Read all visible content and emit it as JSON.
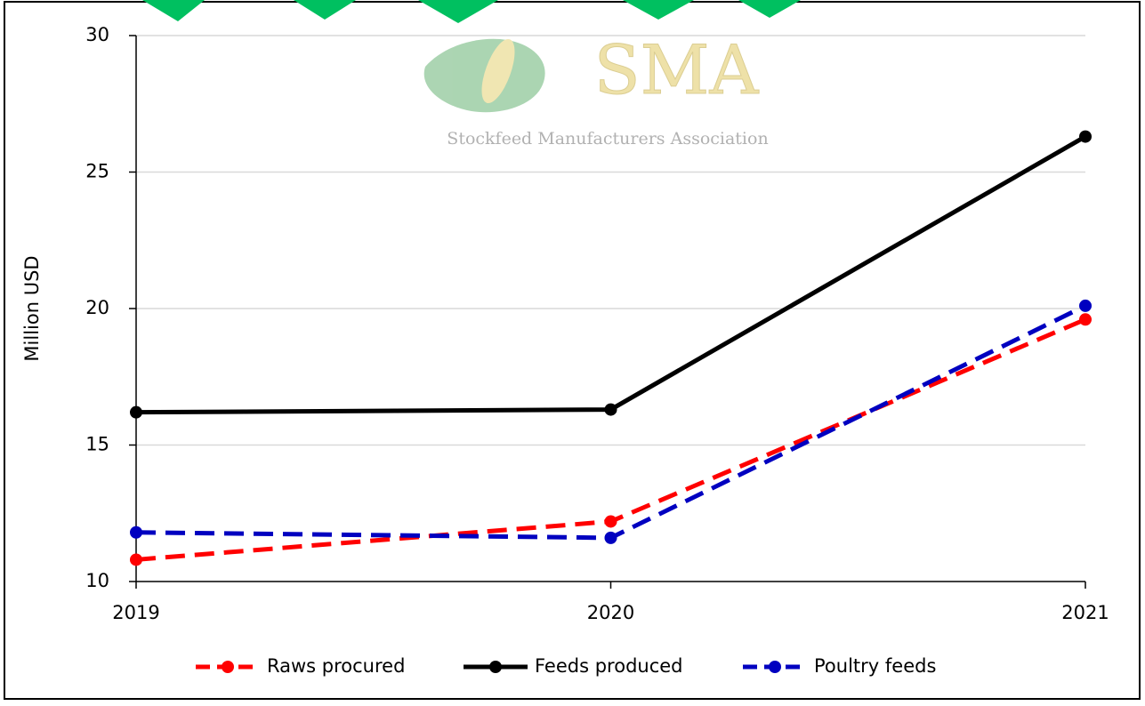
{
  "chart_data": {
    "type": "line",
    "watermark_title": "SMA",
    "watermark_subtitle": "Stockfeed Manufacturers Association",
    "y_label": "Million USD",
    "categories": [
      "2019",
      "2020",
      "2021"
    ],
    "series": [
      {
        "name": "Raws procured",
        "color": "#ff0000",
        "dashed": true,
        "values": [
          10.8,
          12.2,
          19.6
        ]
      },
      {
        "name": "Feeds produced",
        "color": "#000000",
        "dashed": false,
        "values": [
          16.2,
          16.3,
          26.3
        ]
      },
      {
        "name": "Poultry feeds",
        "color": "#0000c0",
        "dashed": true,
        "values": [
          11.8,
          11.6,
          20.1
        ]
      }
    ],
    "ylim": [
      10,
      30
    ],
    "yticks": [
      10,
      15,
      20,
      25,
      30
    ],
    "grid": true,
    "legend": "bottom"
  }
}
